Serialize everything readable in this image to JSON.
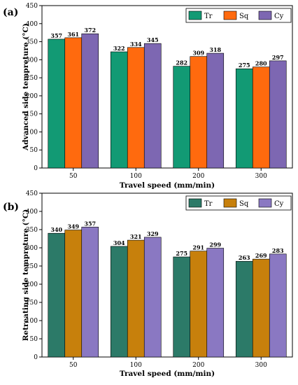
{
  "chart_data": [
    {
      "type": "bar",
      "panel_label": "(a)",
      "title": "",
      "xlabel": "Travel speed (mm/min)",
      "ylabel": "Advanced side tempreture (°C)",
      "ylim": [
        0,
        450
      ],
      "yticks": [
        0,
        50,
        100,
        150,
        200,
        250,
        300,
        350,
        400,
        450
      ],
      "categories": [
        "50",
        "100",
        "200",
        "300"
      ],
      "legend_position": "top-right",
      "grid": false,
      "series": [
        {
          "name": "Tr",
          "color": "#129a74",
          "values": [
            357,
            322,
            282,
            275
          ]
        },
        {
          "name": "Sq",
          "color": "#ff6a0e",
          "values": [
            361,
            334,
            309,
            280
          ]
        },
        {
          "name": "Cy",
          "color": "#7d67b2",
          "values": [
            372,
            345,
            318,
            297
          ]
        }
      ]
    },
    {
      "type": "bar",
      "panel_label": "(b)",
      "title": "",
      "xlabel": "Travel speed (mm/min)",
      "ylabel": "Retreating side tempreture (°C)",
      "ylim": [
        0,
        450
      ],
      "yticks": [
        0,
        50,
        100,
        150,
        200,
        250,
        300,
        350,
        400,
        450
      ],
      "categories": [
        "50",
        "100",
        "200",
        "300"
      ],
      "legend_position": "top-right",
      "grid": false,
      "series": [
        {
          "name": "Tr",
          "color": "#2c7a68",
          "values": [
            340,
            304,
            275,
            263
          ]
        },
        {
          "name": "Sq",
          "color": "#c7800c",
          "values": [
            349,
            321,
            291,
            269
          ]
        },
        {
          "name": "Cy",
          "color": "#8a78c2",
          "values": [
            357,
            329,
            299,
            283
          ]
        }
      ]
    }
  ]
}
